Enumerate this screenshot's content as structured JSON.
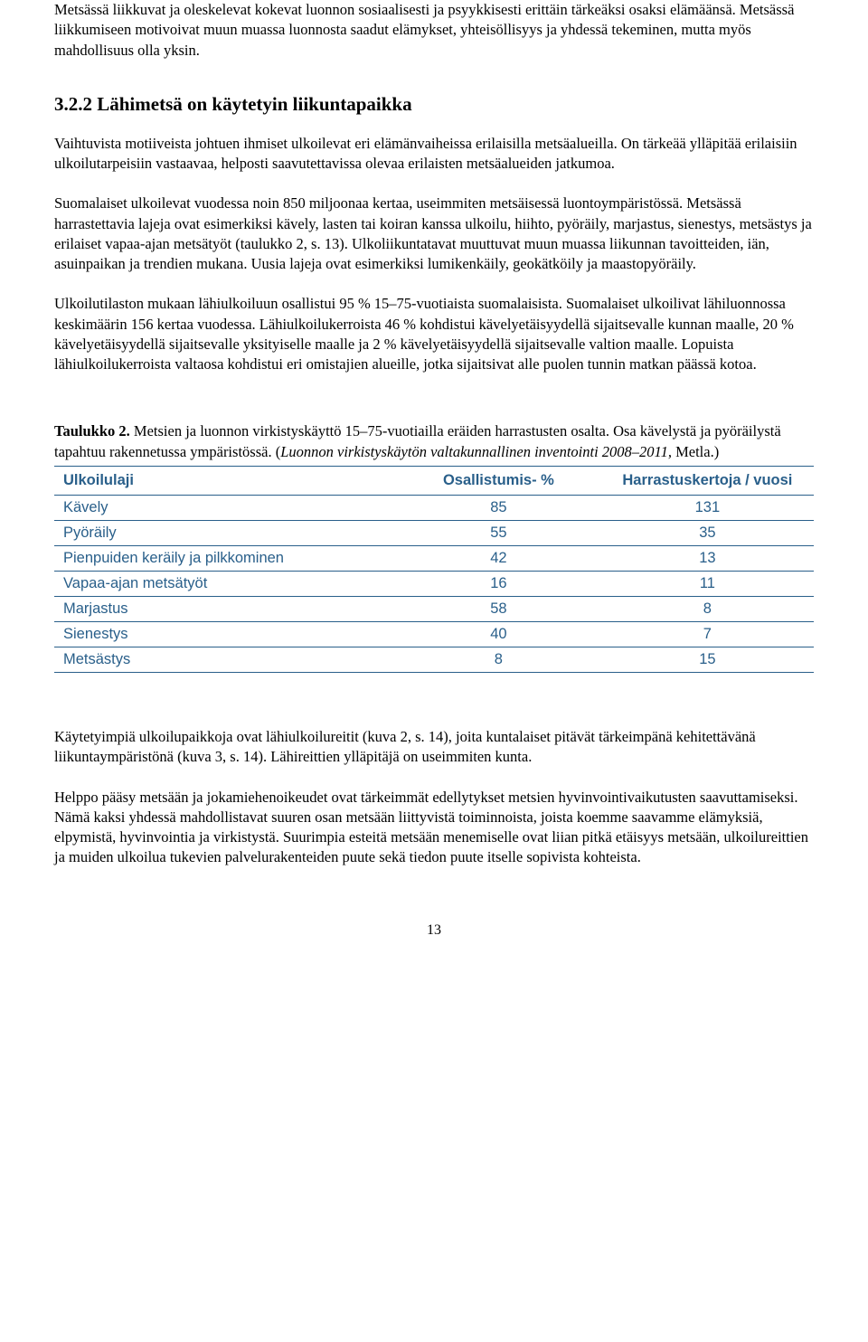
{
  "paragraphs": {
    "intro1": "Metsässä liikkuvat ja oleskelevat kokevat luonnon sosiaalisesti ja psyykkisesti erittäin tärkeäksi osaksi elämäänsä. Metsässä liikkumiseen motivoivat muun muassa luonnosta saadut elämykset, yhteisöllisyys ja yhdessä tekeminen, mutta myös mahdollisuus olla yksin.",
    "heading": "3.2.2  Lähimetsä on käytetyin liikuntapaikka",
    "p2": "Vaihtuvista motiiveista johtuen ihmiset ulkoilevat eri elämänvaiheissa erilaisilla metsäalueilla. On tärkeää ylläpitää erilaisiin ulkoilutarpeisiin vastaavaa, helposti saavutettavissa olevaa erilaisten metsäalueiden jatkumoa.",
    "p3": "Suomalaiset ulkoilevat vuodessa noin 850 miljoonaa kertaa, useimmiten metsäisessä luontoympäristössä. Metsässä harrastettavia lajeja ovat esimerkiksi kävely, lasten tai koiran kanssa ulkoilu, hiihto, pyöräily, marjastus, sienestys, metsästys ja erilaiset vapaa-ajan metsätyöt (taulukko 2, s. 13). Ulkoliikuntatavat muuttuvat muun muassa liikunnan tavoitteiden, iän, asuinpaikan ja trendien mukana. Uusia lajeja ovat esimerkiksi lumikenkäily, geokätköily ja maastopyöräily.",
    "p4": "Ulkoilutilaston mukaan lähiulkoiluun osallistui 95 % 15–75-vuotiaista suomalaisista. Suomalaiset ulkoilivat lähiluonnossa keskimäärin 156 kertaa vuodessa. Lähiulkoilukerroista 46 % kohdistui kävelyetäisyydellä sijaitsevalle kunnan maalle, 20 % kävelyetäisyydellä sijaitsevalle yksityiselle maalle ja 2 % kävelyetäisyydellä sijaitsevalle valtion maalle. Lopuista lähiulkoilukerroista valtaosa kohdistui eri omistajien alueille, jotka sijaitsivat alle puolen tunnin matkan päässä kotoa.",
    "caption_bold": "Taulukko 2.",
    "caption_plain": " Metsien ja luonnon virkistyskäyttö 15–75-vuotiailla eräiden harrastusten osalta. Osa kävelystä ja pyöräilystä tapahtuu rakennetussa ympäristössä. (",
    "caption_italic": "Luonnon virkistyskäytön valtakunnallinen inventointi 2008–2011,",
    "caption_tail": " Metla.)",
    "p5": "Käytetyimpiä ulkoilupaikkoja ovat lähiulkoilureitit (kuva 2, s. 14), joita kuntalaiset pitävät tärkeimpänä kehitettä­vänä liikuntaympäristönä (kuva 3, s. 14). Lähireittien ylläpitäjä on useimmiten kunta.",
    "p6": "Helppo pääsy metsään ja jokamiehenoikeudet ovat tärkeimmät edellytykset metsien hyvinvointivaikutusten saavuttamiseksi. Nämä kaksi yhdessä mahdollistavat suuren osan metsään liittyvistä toiminnoista, joista koemme saavamme elämyksiä, elpymistä, hyvinvointia ja virkistystä. Suurimpia esteitä metsään menemiselle ovat liian pitkä etäisyys metsään, ulkoilureittien ja muiden ulkoilua tukevien palvelurakenteiden puute sekä tiedon puute itselle sopivista kohteista."
  },
  "table": {
    "header_color": "#295f8a",
    "row_color": "#295f8a",
    "border_color": "#295f8a",
    "col_widths": [
      "45%",
      "27%",
      "28%"
    ],
    "columns": [
      "Ulkoilulaji",
      "Osallistumis- %",
      "Harrastuskertoja / vuosi"
    ],
    "rows": [
      [
        "Kävely",
        "85",
        "131"
      ],
      [
        "Pyöräily",
        "55",
        "35"
      ],
      [
        "Pienpuiden keräily ja pilkkominen",
        "42",
        "13"
      ],
      [
        "Vapaa-ajan metsätyöt",
        "16",
        "11"
      ],
      [
        "Marjastus",
        "58",
        "8"
      ],
      [
        "Sienestys",
        "40",
        "7"
      ],
      [
        "Metsästys",
        "8",
        "15"
      ]
    ]
  },
  "page_number": "13"
}
